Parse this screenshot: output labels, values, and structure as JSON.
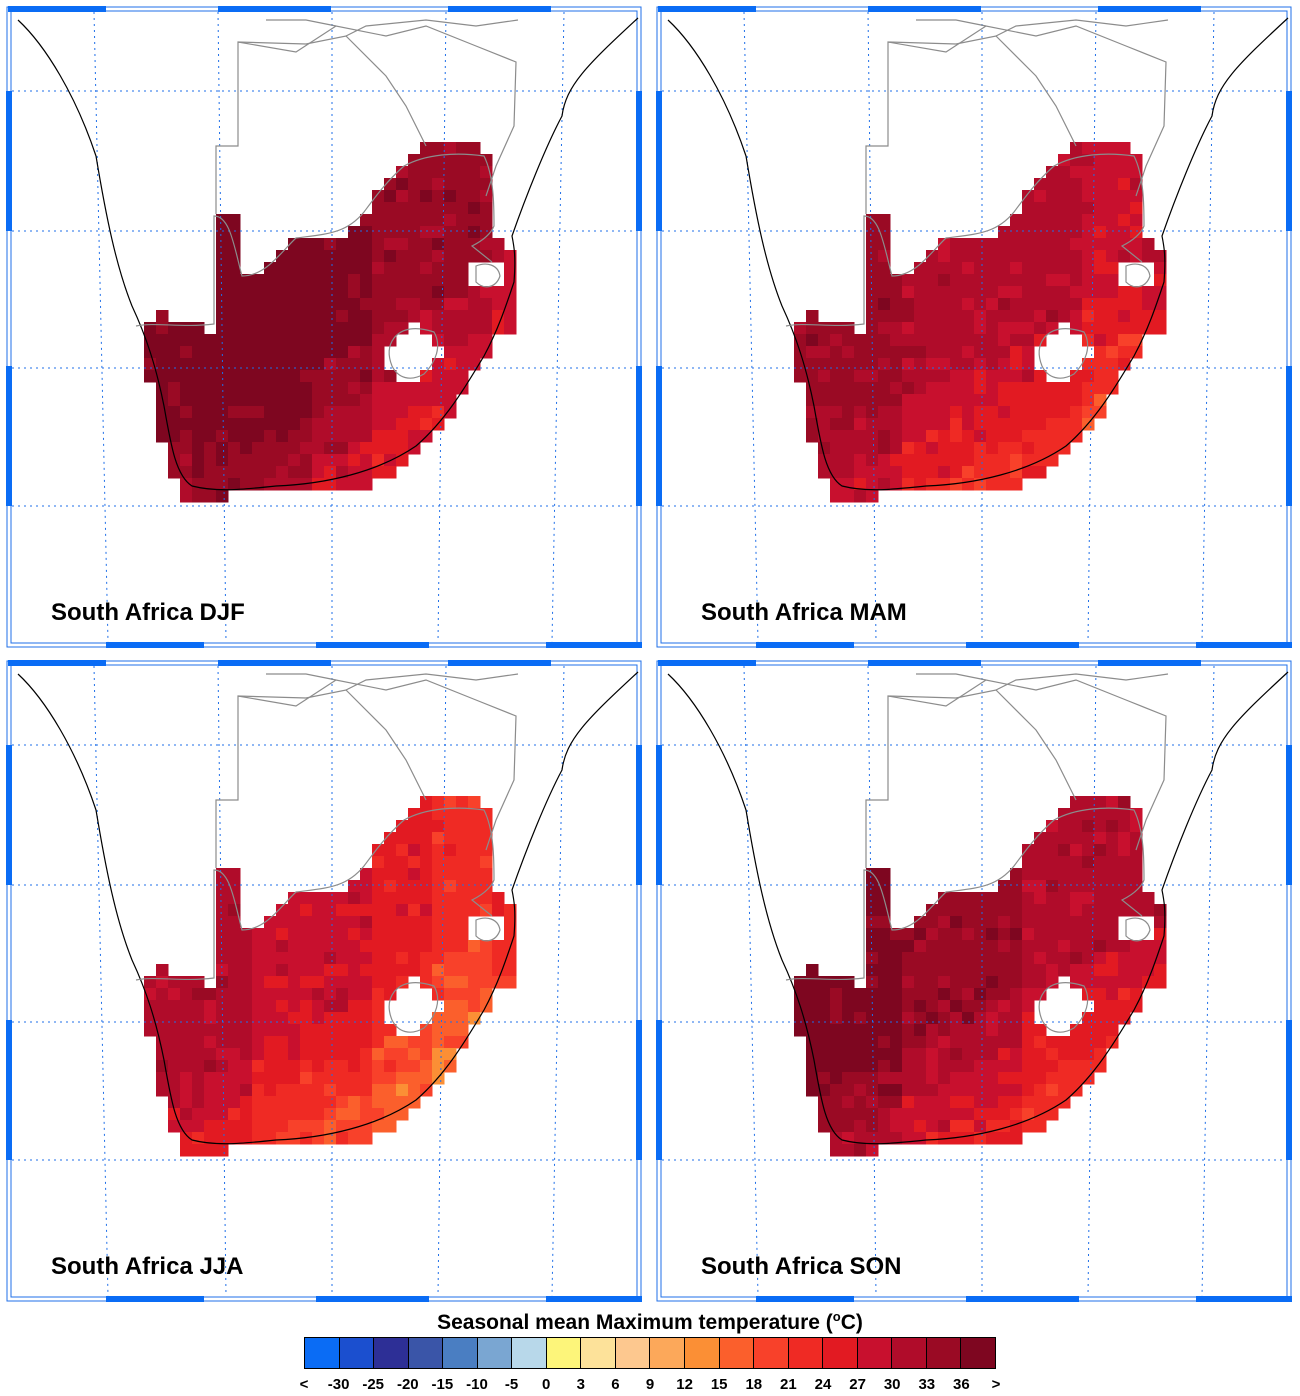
{
  "panels": [
    {
      "label": "South Africa DJF",
      "season": "DJF",
      "palette_index": [
        3,
        4,
        4,
        3,
        2,
        2,
        1
      ]
    },
    {
      "label": "South Africa MAM",
      "season": "MAM",
      "palette_index": [
        2,
        2,
        1,
        1,
        1,
        0,
        1
      ]
    },
    {
      "label": "South Africa JJA",
      "season": "JJA",
      "palette_index": [
        1,
        1,
        0,
        0,
        -1,
        -2,
        -1
      ]
    },
    {
      "label": "South Africa SON",
      "season": "SON",
      "palette_index": [
        3,
        3,
        2,
        2,
        1,
        1,
        1
      ]
    }
  ],
  "colorbar": {
    "title_prefix": "Seasonal mean Maximum temperature (",
    "title_unit_sup": "o",
    "title_unit": "C)",
    "labels": [
      "<",
      "-30",
      "-25",
      "-20",
      "-15",
      "-10",
      "-5",
      "0",
      "3",
      "6",
      "9",
      "12",
      "15",
      "18",
      "21",
      "24",
      "27",
      "30",
      "33",
      "36",
      ">"
    ],
    "colors": [
      "#0a6cf5",
      "#1b4fcf",
      "#2d2f96",
      "#3a55a8",
      "#4a7ec2",
      "#7aa6d2",
      "#b8d8ea",
      "#fdf57a",
      "#fde29a",
      "#fdc88f",
      "#fca85a",
      "#fb8f35",
      "#fb5f2c",
      "#f8412a",
      "#ef2a24",
      "#e21a22",
      "#c8102e",
      "#b00c2a",
      "#9a0a24",
      "#7e0620"
    ]
  },
  "map_style": {
    "grid_color": "#1f6fe8",
    "frame_color": "#1f6fe8",
    "coast_color": "#000000",
    "border_color": "#8c8c8c",
    "warm_palette": [
      "#fb8f35",
      "#fb5f2c",
      "#f8412a",
      "#ef2a24",
      "#e21a22",
      "#c8102e",
      "#b00c2a",
      "#9a0a24",
      "#7e0620"
    ]
  }
}
